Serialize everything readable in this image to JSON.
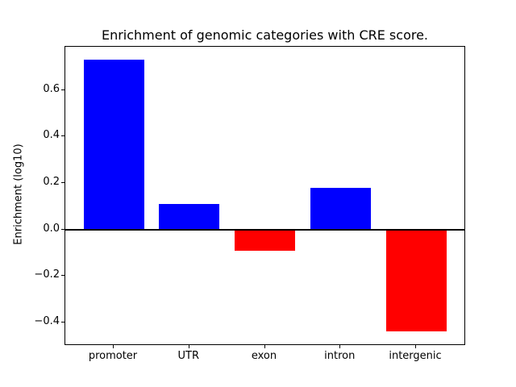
{
  "figure": {
    "background": "#ffffff",
    "frame_color": "#000000"
  },
  "chart_data": {
    "type": "bar",
    "title": "Enrichment of genomic categories with CRE score.",
    "xlabel": "",
    "ylabel": "Enrichment (log10)",
    "categories": [
      "promoter",
      "UTR",
      "exon",
      "intron",
      "intergenic"
    ],
    "values": [
      0.73,
      0.11,
      -0.09,
      0.18,
      -0.44
    ],
    "bar_colors": [
      "#0000ff",
      "#0000ff",
      "#ff0000",
      "#0000ff",
      "#ff0000"
    ],
    "positive_color": "#0000ff",
    "negative_color": "#ff0000",
    "ylim": [
      -0.494,
      0.787
    ],
    "yticks": [
      {
        "value": 0.6,
        "label": "0.6"
      },
      {
        "value": 0.4,
        "label": "0.4"
      },
      {
        "value": 0.2,
        "label": "0.2"
      },
      {
        "value": 0.0,
        "label": "0.0"
      },
      {
        "value": -0.2,
        "label": "−0.2"
      },
      {
        "value": -0.4,
        "label": "−0.4"
      }
    ],
    "zero_line": true,
    "grid": false
  }
}
